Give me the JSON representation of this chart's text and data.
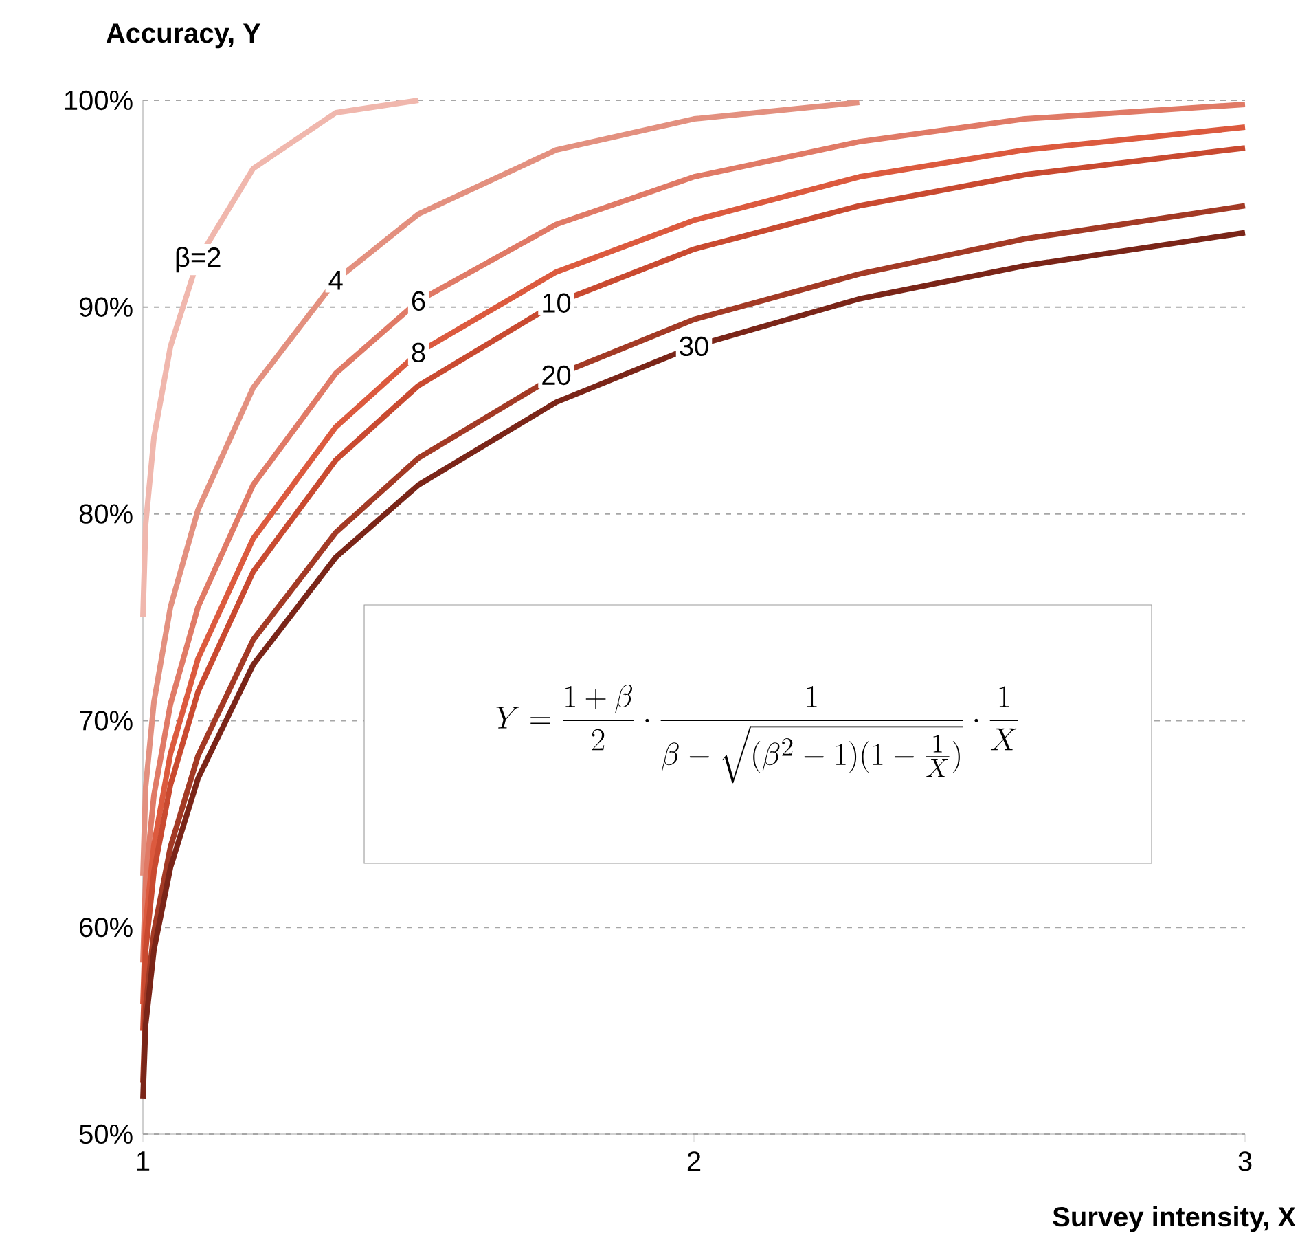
{
  "chart_data": {
    "type": "line",
    "xlabel": "Survey intensity, X",
    "ylabel": "Accuracy, Y",
    "xlim": [
      1,
      3
    ],
    "ylim": [
      50,
      100
    ],
    "xticks": [
      1,
      2,
      3
    ],
    "yticks": [
      {
        "value": 50,
        "label": "50%"
      },
      {
        "value": 60,
        "label": "60%"
      },
      {
        "value": 70,
        "label": "70%"
      },
      {
        "value": 80,
        "label": "80%"
      },
      {
        "value": 90,
        "label": "90%"
      },
      {
        "value": 100,
        "label": "100%"
      }
    ],
    "grid": "y",
    "marker": "none",
    "line_style": "solid",
    "annotations": [
      "Y=\\frac{1+\\beta}{2}\\cdot\\frac{1}{\\beta-\\sqrt{(\\beta^{2}-1)(1-\\frac{1}{X})}}\\cdot\\frac{1}{X}"
    ],
    "series": [
      {
        "name": "β=2",
        "color": "#f0b7ad",
        "x": [
          1,
          1.005,
          1.02,
          1.05,
          1.1,
          1.2,
          1.35,
          1.5
        ],
        "values": [
          75.0,
          79.5,
          83.7,
          88.1,
          92.3,
          96.7,
          99.4,
          100.0
        ]
      },
      {
        "name": "4",
        "color": "#e3907f",
        "x": [
          1,
          1.005,
          1.02,
          1.05,
          1.1,
          1.2,
          1.35,
          1.5,
          1.75,
          2,
          2.3
        ],
        "values": [
          62.5,
          66.8,
          70.9,
          75.5,
          80.2,
          86.1,
          91.3,
          94.5,
          97.6,
          99.1,
          99.9
        ]
      },
      {
        "name": "6",
        "color": "#e07a66",
        "x": [
          1,
          1.005,
          1.02,
          1.05,
          1.1,
          1.2,
          1.35,
          1.5,
          1.75,
          2,
          2.3,
          2.6,
          3
        ],
        "values": [
          58.3,
          62.4,
          66.4,
          70.8,
          75.5,
          81.4,
          86.8,
          90.3,
          94.0,
          96.3,
          98.0,
          99.1,
          99.8
        ]
      },
      {
        "name": "8",
        "color": "#dc5a3e",
        "x": [
          1,
          1.005,
          1.02,
          1.05,
          1.1,
          1.2,
          1.35,
          1.5,
          1.75,
          2,
          2.3,
          2.6,
          3
        ],
        "values": [
          56.3,
          60.2,
          64.0,
          68.4,
          73.0,
          78.8,
          84.2,
          87.8,
          91.7,
          94.2,
          96.3,
          97.6,
          98.7
        ]
      },
      {
        "name": "10",
        "color": "#c94a30",
        "x": [
          1,
          1.005,
          1.02,
          1.05,
          1.1,
          1.2,
          1.35,
          1.5,
          1.75,
          2,
          2.3,
          2.6,
          3
        ],
        "values": [
          55.0,
          58.9,
          62.7,
          66.9,
          71.4,
          77.2,
          82.6,
          86.2,
          90.2,
          92.8,
          94.9,
          96.4,
          97.7
        ]
      },
      {
        "name": "20",
        "color": "#a33a25",
        "x": [
          1,
          1.005,
          1.02,
          1.05,
          1.1,
          1.2,
          1.35,
          1.5,
          1.75,
          2,
          2.3,
          2.6,
          3
        ],
        "values": [
          52.5,
          56.2,
          59.8,
          63.9,
          68.3,
          73.9,
          79.1,
          82.7,
          86.7,
          89.4,
          91.6,
          93.3,
          94.9
        ]
      },
      {
        "name": "30",
        "color": "#7a2518",
        "x": [
          1,
          1.005,
          1.02,
          1.05,
          1.1,
          1.2,
          1.35,
          1.5,
          1.75,
          2,
          2.3,
          2.6,
          3
        ],
        "values": [
          51.7,
          55.3,
          58.9,
          62.9,
          67.2,
          72.7,
          77.9,
          81.4,
          85.4,
          88.1,
          90.4,
          92.0,
          93.6
        ]
      }
    ]
  }
}
